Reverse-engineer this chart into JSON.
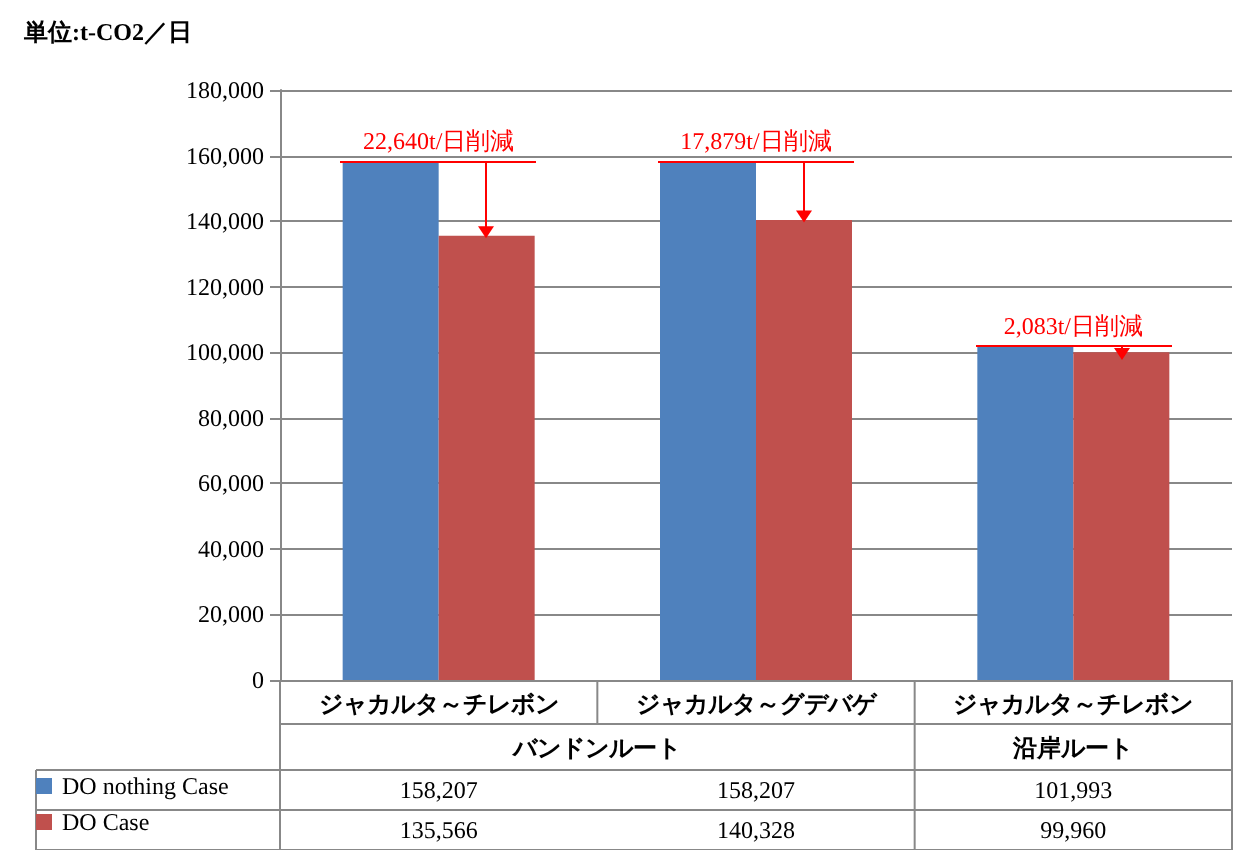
{
  "chart_data": {
    "type": "bar",
    "ylabel": "単位:t-CO2／日",
    "categories": [
      "ジャカルタ～チレボン",
      "ジャカルタ～グデバゲ",
      "ジャカルタ～チレボン"
    ],
    "series": [
      {
        "name": "DO nothing Case",
        "color": "#4f81bd",
        "values": [
          158207,
          158207,
          101993
        ],
        "value_labels": [
          "158,207",
          "158,207",
          "101,993"
        ]
      },
      {
        "name": "DO Case",
        "color": "#c0504d",
        "values": [
          135566,
          140328,
          99960
        ],
        "value_labels": [
          "135,566",
          "140,328",
          "99,960"
        ]
      }
    ],
    "ylim": [
      0,
      180000
    ],
    "yticks": [
      0,
      {
        "value": 20000,
        "label": "20,000"
      },
      {
        "value": 40000,
        "label": "40,000"
      },
      {
        "value": 60000,
        "label": "60,000"
      },
      {
        "value": 80000,
        "label": "80,000"
      },
      {
        "value": 100000,
        "label": "100,000"
      },
      {
        "value": 120000,
        "label": "120,000"
      },
      {
        "value": 140000,
        "label": "140,000"
      },
      {
        "value": 160000,
        "label": "160,000"
      },
      {
        "value": 180000,
        "label": "180,000"
      }
    ],
    "grid": "y",
    "legend": "bottom left",
    "annotations": [
      "22,640t/日削減",
      "17,879t/日削減",
      "2,083t/日削減",
      "バンドンルート",
      "沿岸ルート"
    ]
  }
}
